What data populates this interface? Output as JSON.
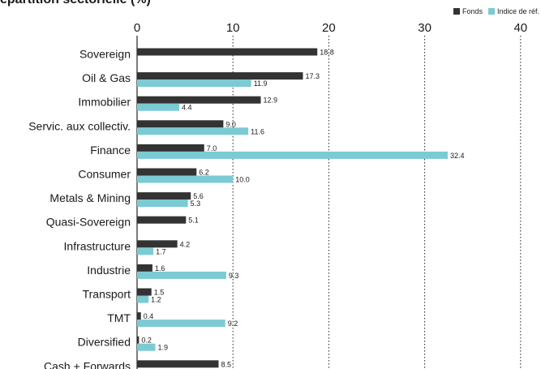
{
  "chart_data": {
    "type": "bar",
    "orientation": "horizontal",
    "title": "épartition sectorielle (%)",
    "xlim": [
      0,
      40
    ],
    "xticks": [
      0,
      10,
      20,
      30,
      40
    ],
    "grid": "vertical dotted",
    "legend_position": "top-right",
    "categories": [
      "Sovereign",
      "Oil & Gas",
      "Immobilier",
      "Servic. aux collectiv.",
      "Finance",
      "Consumer",
      "Metals & Mining",
      "Quasi-Sovereign",
      "Infrastructure",
      "Industrie",
      "Transport",
      "TMT",
      "Diversified",
      "Cash + Forwards"
    ],
    "series": [
      {
        "name": "Fonds",
        "color": "#333333",
        "values": [
          18.8,
          17.3,
          12.9,
          9.0,
          7.0,
          6.2,
          5.6,
          5.1,
          4.2,
          1.6,
          1.5,
          0.4,
          0.2,
          8.5
        ]
      },
      {
        "name": "Indice de réf.",
        "color": "#7ccad4",
        "values": [
          null,
          11.9,
          4.4,
          11.6,
          32.4,
          10.0,
          5.3,
          null,
          1.7,
          9.3,
          1.2,
          9.2,
          1.9,
          null
        ]
      }
    ]
  }
}
